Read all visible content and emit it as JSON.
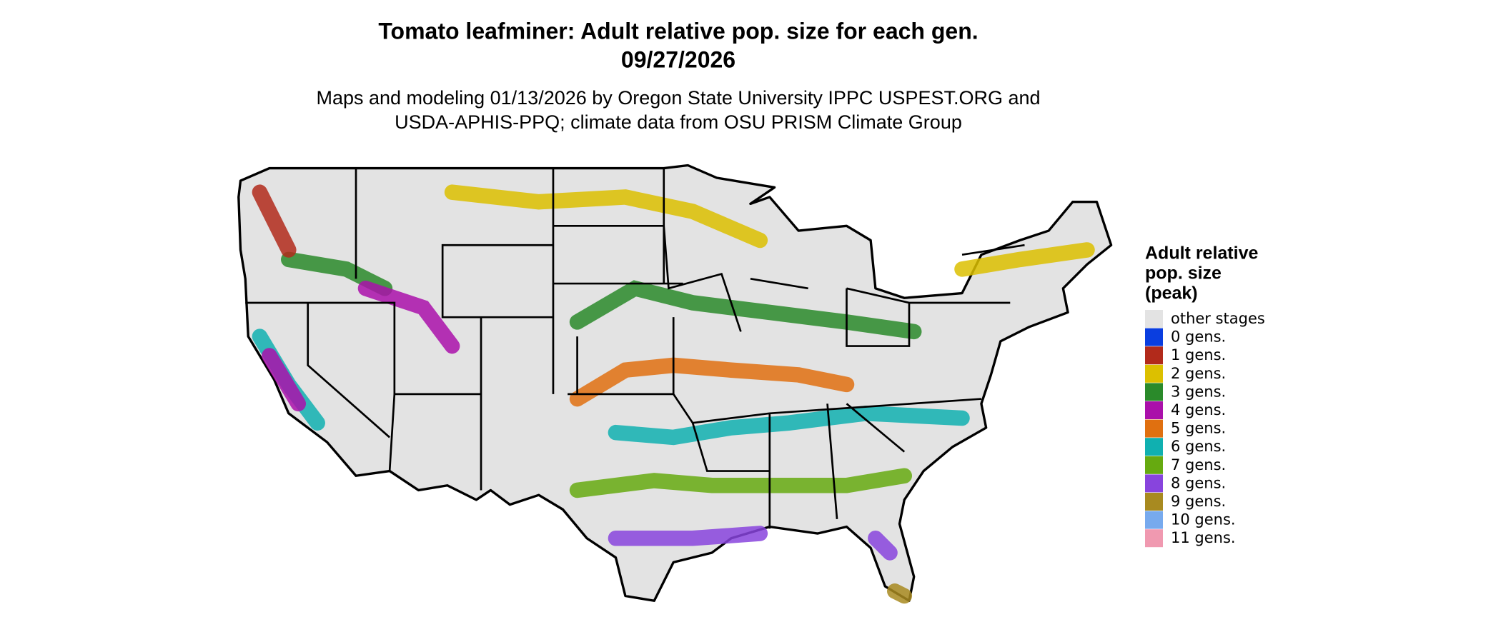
{
  "title": [
    "Tomato leafminer: Adult relative pop. size for each gen.",
    "09/27/2026"
  ],
  "subtitle": [
    "Maps and modeling 01/13/2026 by Oregon State University IPPC USPEST.ORG and",
    "USDA-APHIS-PPQ; climate data from OSU PRISM Climate Group"
  ],
  "legend": {
    "title": [
      "Adult relative",
      "pop. size",
      "(peak)"
    ],
    "items": [
      {
        "label": "other stages",
        "color": "#e3e3e3"
      },
      {
        "label": "0 gens.",
        "color": "#0a3ee0"
      },
      {
        "label": "1 gens.",
        "color": "#b22a1b"
      },
      {
        "label": "2 gens.",
        "color": "#dcc000"
      },
      {
        "label": "3 gens.",
        "color": "#2a8a2a"
      },
      {
        "label": "4 gens.",
        "color": "#aa10aa"
      },
      {
        "label": "5 gens.",
        "color": "#e07010"
      },
      {
        "label": "6 gens.",
        "color": "#10b0b0"
      },
      {
        "label": "7 gens.",
        "color": "#66aa10"
      },
      {
        "label": "8 gens.",
        "color": "#8844dd"
      },
      {
        "label": "9 gens.",
        "color": "#a88a20"
      },
      {
        "label": "10 gens.",
        "color": "#77aaee"
      },
      {
        "label": "11 gens.",
        "color": "#f099b0"
      }
    ]
  }
}
